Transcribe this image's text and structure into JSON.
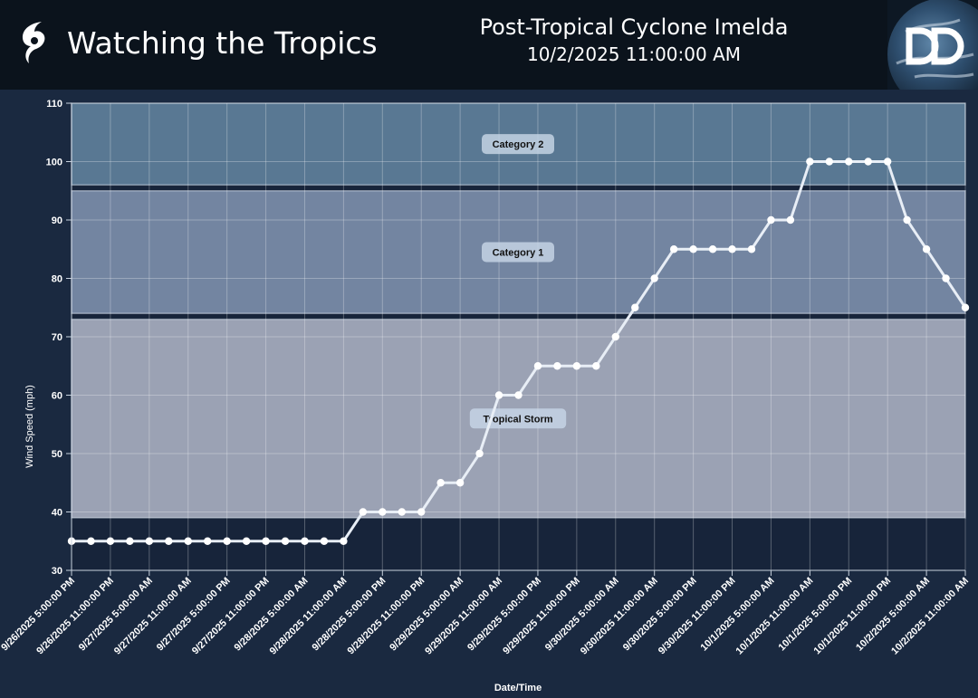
{
  "header": {
    "app_title": "Watching the Tropics",
    "storm_name": "Post-Tropical Cyclone Imelda",
    "storm_time": "10/2/2025 11:00:00 AM",
    "brand_icon": "hurricane-icon",
    "logo_icon": "dd-globe-logo"
  },
  "colors": {
    "background": "#1a2940",
    "header_bg": "#0b131c",
    "line": "#e8eef6",
    "category2_band": "#6b8fad",
    "category1_band": "#8da0bf",
    "tropical_storm_band": "#b8bed0"
  },
  "chart_data": {
    "type": "line",
    "title": "",
    "xlabel": "Date/Time",
    "ylabel": "Wind Speed (mph)",
    "ylim": [
      30,
      110
    ],
    "yticks": [
      30,
      40,
      50,
      60,
      70,
      80,
      90,
      100,
      110
    ],
    "grid": true,
    "categories": [
      "9/26/2025 5:00:00 PM",
      "9/26/2025 8:00:00 PM",
      "9/26/2025 11:00:00 PM",
      "9/27/2025 2:00:00 AM",
      "9/27/2025 5:00:00 AM",
      "9/27/2025 8:00:00 AM",
      "9/27/2025 11:00:00 AM",
      "9/27/2025 2:00:00 PM",
      "9/27/2025 5:00:00 PM",
      "9/27/2025 8:00:00 PM",
      "9/27/2025 11:00:00 PM",
      "9/28/2025 2:00:00 AM",
      "9/28/2025 5:00:00 AM",
      "9/28/2025 8:00:00 AM",
      "9/28/2025 11:00:00 AM",
      "9/28/2025 2:00:00 PM",
      "9/28/2025 5:00:00 PM",
      "9/28/2025 8:00:00 PM",
      "9/28/2025 11:00:00 PM",
      "9/29/2025 2:00:00 AM",
      "9/29/2025 5:00:00 AM",
      "9/29/2025 8:00:00 AM",
      "9/29/2025 11:00:00 AM",
      "9/29/2025 2:00:00 PM",
      "9/29/2025 5:00:00 PM",
      "9/29/2025 8:00:00 PM",
      "9/29/2025 11:00:00 PM",
      "9/30/2025 2:00:00 AM",
      "9/30/2025 5:00:00 AM",
      "9/30/2025 8:00:00 AM",
      "9/30/2025 11:00:00 AM",
      "9/30/2025 2:00:00 PM",
      "9/30/2025 5:00:00 PM",
      "9/30/2025 8:00:00 PM",
      "9/30/2025 11:00:00 PM",
      "10/1/2025 2:00:00 AM",
      "10/1/2025 5:00:00 AM",
      "10/1/2025 8:00:00 AM",
      "10/1/2025 11:00:00 AM",
      "10/1/2025 2:00:00 PM",
      "10/1/2025 5:00:00 PM",
      "10/1/2025 8:00:00 PM",
      "10/1/2025 11:00:00 PM",
      "10/2/2025 2:00:00 AM",
      "10/2/2025 5:00:00 AM",
      "10/2/2025 8:00:00 AM",
      "10/2/2025 11:00:00 AM"
    ],
    "x_tick_labels": [
      "9/26/2025 5:00:00 PM",
      "9/26/2025 11:00:00 PM",
      "9/27/2025 5:00:00 AM",
      "9/27/2025 11:00:00 AM",
      "9/27/2025 5:00:00 PM",
      "9/27/2025 11:00:00 PM",
      "9/28/2025 5:00:00 AM",
      "9/28/2025 11:00:00 AM",
      "9/28/2025 5:00:00 PM",
      "9/28/2025 11:00:00 PM",
      "9/29/2025 5:00:00 AM",
      "9/29/2025 11:00:00 AM",
      "9/29/2025 5:00:00 PM",
      "9/29/2025 11:00:00 PM",
      "9/30/2025 5:00:00 AM",
      "9/30/2025 11:00:00 AM",
      "9/30/2025 5:00:00 PM",
      "9/30/2025 11:00:00 PM",
      "10/1/2025 5:00:00 AM",
      "10/1/2025 11:00:00 AM",
      "10/1/2025 5:00:00 PM",
      "10/1/2025 11:00:00 PM",
      "10/2/2025 5:00:00 AM",
      "10/2/2025 11:00:00 AM"
    ],
    "series": [
      {
        "values": [
          35,
          35,
          35,
          35,
          35,
          35,
          35,
          35,
          35,
          35,
          35,
          35,
          35,
          35,
          35,
          40,
          40,
          40,
          40,
          45,
          45,
          50,
          60,
          60,
          65,
          65,
          65,
          65,
          70,
          75,
          80,
          85,
          85,
          85,
          85,
          85,
          90,
          90,
          100,
          100,
          100,
          100,
          100,
          90,
          85,
          80,
          75
        ]
      }
    ],
    "bands": [
      {
        "label": "Tropical Storm",
        "from": 39,
        "to": 73
      },
      {
        "label": "Category 1",
        "from": 74,
        "to": 95
      },
      {
        "label": "Category 2",
        "from": 96,
        "to": 110
      }
    ]
  }
}
